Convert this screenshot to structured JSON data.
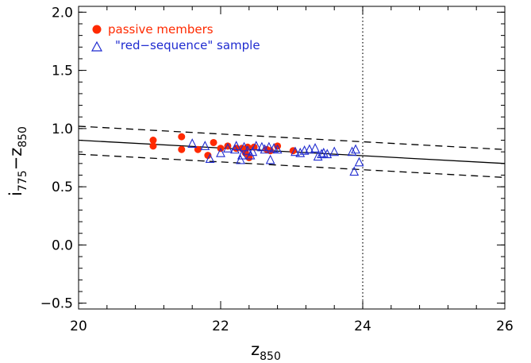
{
  "chart_data": {
    "type": "scatter",
    "title": "",
    "xlabel": "z",
    "xlabel_sub": "850",
    "ylabel_main": "i",
    "ylabel_sub1": "775",
    "ylabel_dash": "−z",
    "ylabel_sub2": "850",
    "xlim": [
      20,
      26
    ],
    "ylim": [
      -0.55,
      2.05
    ],
    "x_ticks": [
      20,
      22,
      24,
      26
    ],
    "x_tick_labels": [
      "20",
      "22",
      "24",
      "26"
    ],
    "x_minor_step": 0.4,
    "y_ticks": [
      -0.5,
      0.0,
      0.5,
      1.0,
      1.5,
      2.0
    ],
    "y_tick_labels": [
      "−0.5",
      "0.0",
      "0.5",
      "1.0",
      "1.5",
      "2.0"
    ],
    "y_minor_step": 0.1,
    "grid": false,
    "legend_position": "top-left",
    "legend": [
      {
        "label": "passive members",
        "marker": "filled-circle",
        "color": "#ff2a00"
      },
      {
        "label": "\"red−sequence\" sample",
        "marker": "open-triangle",
        "color": "#1f2bd0"
      }
    ],
    "fit_line": {
      "x": [
        20,
        26
      ],
      "y": [
        0.9,
        0.7
      ],
      "style": "solid",
      "color": "#000000"
    },
    "upper_bound": {
      "x": [
        20,
        26
      ],
      "y": [
        1.02,
        0.82
      ],
      "style": "dashed",
      "color": "#000000"
    },
    "lower_bound": {
      "x": [
        20,
        26
      ],
      "y": [
        0.78,
        0.58
      ],
      "style": "dashed",
      "color": "#000000"
    },
    "vertical_line": {
      "x": 24.0,
      "style": "dotted",
      "color": "#000000"
    },
    "series": [
      {
        "name": "passive members",
        "marker": "filled-circle",
        "color": "#ff2a00",
        "points": [
          [
            21.05,
            0.9
          ],
          [
            21.05,
            0.85
          ],
          [
            21.45,
            0.93
          ],
          [
            21.45,
            0.82
          ],
          [
            21.68,
            0.82
          ],
          [
            21.82,
            0.77
          ],
          [
            21.9,
            0.88
          ],
          [
            22.0,
            0.83
          ],
          [
            22.1,
            0.85
          ],
          [
            22.22,
            0.83
          ],
          [
            22.3,
            0.83
          ],
          [
            22.35,
            0.79
          ],
          [
            22.38,
            0.84
          ],
          [
            22.4,
            0.75
          ],
          [
            22.47,
            0.84
          ],
          [
            22.65,
            0.82
          ],
          [
            22.7,
            0.81
          ],
          [
            22.8,
            0.85
          ],
          [
            23.02,
            0.81
          ]
        ]
      },
      {
        "name": "\"red−sequence\" sample",
        "marker": "open-triangle",
        "color": "#1f2bd0",
        "points": [
          [
            21.6,
            0.87
          ],
          [
            21.78,
            0.85
          ],
          [
            21.85,
            0.74
          ],
          [
            22.0,
            0.79
          ],
          [
            22.1,
            0.83
          ],
          [
            22.2,
            0.82
          ],
          [
            22.22,
            0.85
          ],
          [
            22.28,
            0.73
          ],
          [
            22.3,
            0.77
          ],
          [
            22.33,
            0.84
          ],
          [
            22.38,
            0.81
          ],
          [
            22.42,
            0.77
          ],
          [
            22.45,
            0.8
          ],
          [
            22.5,
            0.85
          ],
          [
            22.58,
            0.84
          ],
          [
            22.62,
            0.82
          ],
          [
            22.68,
            0.84
          ],
          [
            22.7,
            0.73
          ],
          [
            22.75,
            0.83
          ],
          [
            22.8,
            0.82
          ],
          [
            23.05,
            0.8
          ],
          [
            23.12,
            0.79
          ],
          [
            23.18,
            0.81
          ],
          [
            23.25,
            0.82
          ],
          [
            23.33,
            0.83
          ],
          [
            23.37,
            0.76
          ],
          [
            23.42,
            0.78
          ],
          [
            23.45,
            0.79
          ],
          [
            23.5,
            0.78
          ],
          [
            23.6,
            0.8
          ],
          [
            23.85,
            0.8
          ],
          [
            23.9,
            0.82
          ],
          [
            23.88,
            0.63
          ],
          [
            23.95,
            0.71
          ]
        ]
      }
    ]
  }
}
